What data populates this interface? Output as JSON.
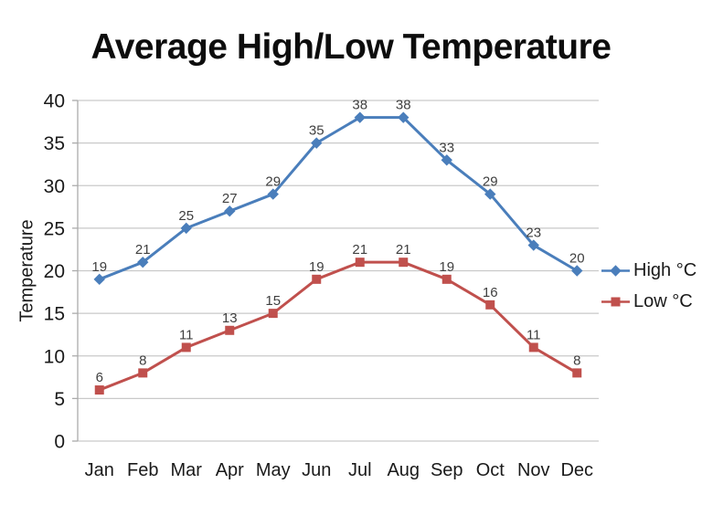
{
  "title": "Average High/Low Temperature",
  "chart_data": {
    "type": "line",
    "title": "Average High/Low Temperature",
    "categories": [
      "Jan",
      "Feb",
      "Mar",
      "Apr",
      "May",
      "Jun",
      "Jul",
      "Aug",
      "Sep",
      "Oct",
      "Nov",
      "Dec"
    ],
    "series": [
      {
        "name": "High °C",
        "values": [
          19,
          21,
          25,
          27,
          29,
          35,
          38,
          38,
          33,
          29,
          23,
          20
        ],
        "color": "#4A7EBB",
        "marker": "diamond"
      },
      {
        "name": "Low °C",
        "values": [
          6,
          8,
          11,
          13,
          15,
          19,
          21,
          21,
          19,
          16,
          11,
          8
        ],
        "color": "#C0504D",
        "marker": "square"
      }
    ],
    "xlabel": "",
    "ylabel": "Temperature",
    "ylim": [
      0,
      40
    ],
    "yticks": [
      0,
      5,
      10,
      15,
      20,
      25,
      30,
      35,
      40
    ],
    "grid": true,
    "data_labels": true,
    "legend_position": "right"
  },
  "colors": {
    "high_series": "#4A7EBB",
    "low_series": "#C0504D",
    "gridline": "#C9C9C9",
    "axis_line": "#ABABAB",
    "tick_text": "#1A1A1A",
    "data_label_text": "#3F3F3F"
  }
}
